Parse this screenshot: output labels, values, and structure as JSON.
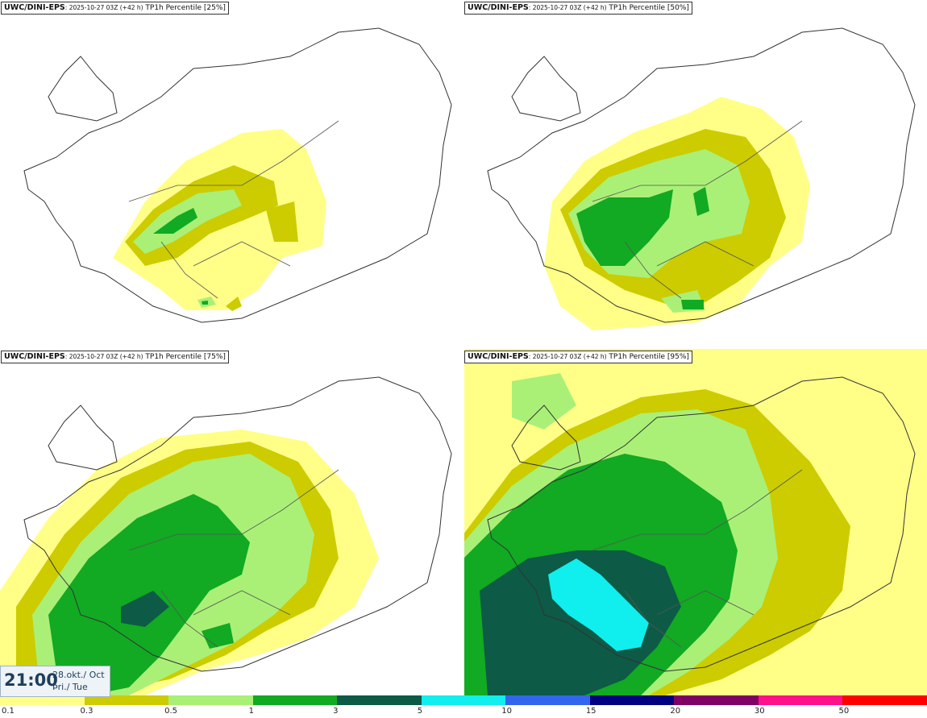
{
  "panels": [
    {
      "model": "UWC/DINI-EPS",
      "run": ": 2025-10-27 03Z (+42 h)",
      "product": " TP1h Percentile [25%]"
    },
    {
      "model": "UWC/DINI-EPS",
      "run": ": 2025-10-27 03Z (+42 h)",
      "product": " TP1h Percentile [50%]"
    },
    {
      "model": "UWC/DINI-EPS",
      "run": ": 2025-10-27 03Z (+42 h)",
      "product": " TP1h Percentile [75%]"
    },
    {
      "model": "UWC/DINI-EPS",
      "run": ": 2025-10-27 03Z (+42 h)",
      "product": " TP1h Percentile [95%]"
    }
  ],
  "valid_time": {
    "time": "21:00",
    "date": "28.okt./ Oct",
    "weekday": "Þri./ Tue"
  },
  "legend": {
    "labels": [
      "0.1",
      "0.3",
      "0.5",
      "1",
      "3",
      "5",
      "10",
      "15",
      "20",
      "30",
      "50"
    ],
    "colors": [
      "#ffff88",
      "#cccc00",
      "#aaf077",
      "#11aa22",
      "#0d5a47",
      "#11eeee",
      "#3366ee",
      "#000080",
      "#800066",
      "#ff1188",
      "#ff0000"
    ]
  }
}
